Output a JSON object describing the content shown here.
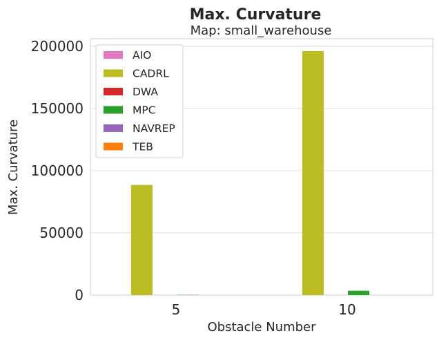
{
  "chart_data": {
    "type": "bar",
    "title": "Max. Curvature",
    "subtitle": "Map: small_warehouse",
    "xlabel": "Obstacle Number",
    "ylabel": "Max. Curvature",
    "categories": [
      "5",
      "10"
    ],
    "ylim": [
      0,
      206000
    ],
    "yticks": [
      0,
      50000,
      100000,
      150000,
      200000
    ],
    "ytick_labels": [
      "0",
      "50000",
      "100000",
      "150000",
      "200000"
    ],
    "grid": true,
    "legend_position": "top-left",
    "series": [
      {
        "name": "AIO",
        "color": "#e377c2",
        "values": [
          0,
          0
        ]
      },
      {
        "name": "CADRL",
        "color": "#bcbd22",
        "values": [
          88500,
          196000
        ]
      },
      {
        "name": "DWA",
        "color": "#d62728",
        "values": [
          0,
          0
        ]
      },
      {
        "name": "MPC",
        "color": "#2ca02c",
        "values": [
          200,
          3500
        ]
      },
      {
        "name": "NAVREP",
        "color": "#9467bd",
        "values": [
          0,
          0
        ]
      },
      {
        "name": "TEB",
        "color": "#ff7f0e",
        "values": [
          0,
          0
        ]
      }
    ]
  }
}
